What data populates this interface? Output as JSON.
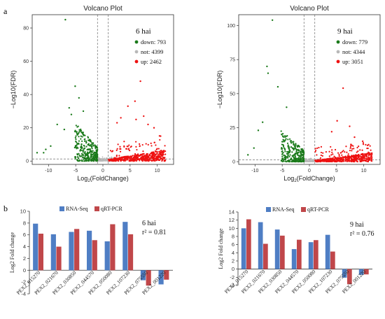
{
  "panel_labels": {
    "top": "a",
    "bottom": "b"
  },
  "chart_data": [
    {
      "type": "scatter",
      "title": "Volcano Plot",
      "annotation": "6 hai",
      "xlabel": "Log2(FoldChange)",
      "ylabel": "−Log10(FDR)",
      "xlim": [
        -13,
        13
      ],
      "ylim": [
        -2,
        88
      ],
      "x_ticks": [
        -10,
        -5,
        0,
        5,
        10
      ],
      "y_ticks": [
        0,
        20,
        40,
        60,
        80
      ],
      "threshold_x": [
        -1,
        1
      ],
      "threshold_y": 1.3,
      "legend": [
        {
          "label": "down: 793",
          "color": "#1a7a1a"
        },
        {
          "label": "not: 4399",
          "color": "#b8b8b8"
        },
        {
          "label": "up: 2462",
          "color": "#ee1111"
        }
      ],
      "outliers_down": [
        [
          -6.9,
          85
        ],
        [
          -5.1,
          45
        ],
        [
          -4.4,
          38
        ],
        [
          -6.2,
          32
        ],
        [
          -5.8,
          28
        ],
        [
          -3.6,
          30
        ],
        [
          -8.4,
          22
        ],
        [
          -7.1,
          19
        ],
        [
          -9.6,
          9
        ],
        [
          -10.5,
          7
        ],
        [
          -12.1,
          5
        ],
        [
          -10.9,
          5
        ]
      ],
      "outliers_up": [
        [
          6.9,
          48
        ],
        [
          5.9,
          36
        ],
        [
          4.6,
          33
        ],
        [
          7.5,
          27
        ],
        [
          6.1,
          25
        ],
        [
          3.3,
          26
        ],
        [
          8.3,
          22
        ],
        [
          9.4,
          20
        ],
        [
          10.6,
          15
        ],
        [
          2.6,
          23
        ]
      ]
    },
    {
      "type": "scatter",
      "title": "Volcano Plot",
      "annotation": "9 hai",
      "xlabel": "Log2(FoldChange)",
      "ylabel": "−Log10(FDR)",
      "xlim": [
        -13,
        13
      ],
      "ylim": [
        -2,
        108
      ],
      "x_ticks": [
        -10,
        -5,
        0,
        5,
        10
      ],
      "y_ticks": [
        0,
        25,
        50,
        75,
        100
      ],
      "threshold_x": [
        -1,
        1
      ],
      "threshold_y": 1.3,
      "legend": [
        {
          "label": "down: 779",
          "color": "#1a7a1a"
        },
        {
          "label": "not: 4344",
          "color": "#b8b8b8"
        },
        {
          "label": "up: 3051",
          "color": "#ee1111"
        }
      ],
      "outliers_down": [
        [
          -6.8,
          104
        ],
        [
          -7.8,
          70
        ],
        [
          -7.6,
          65
        ],
        [
          -5.8,
          55
        ],
        [
          -9.4,
          23
        ],
        [
          -10.2,
          10
        ],
        [
          -11.3,
          5
        ],
        [
          -8.6,
          29
        ],
        [
          -4.2,
          40
        ]
      ],
      "outliers_up": [
        [
          6.2,
          54
        ],
        [
          5.1,
          30
        ],
        [
          7.4,
          26
        ],
        [
          4.1,
          22
        ],
        [
          8.3,
          18
        ],
        [
          9.8,
          15
        ],
        [
          10.7,
          12
        ]
      ]
    },
    {
      "type": "bar",
      "annotation": "6 hai",
      "r2": "r² = 0.81",
      "ylabel": "Log2 Fold change",
      "ylim": [
        -4,
        10
      ],
      "y_ticks": [
        -4,
        -2,
        0,
        2,
        4,
        6,
        8,
        10
      ],
      "categories": [
        "PEX2_015270",
        "PEX2_021670",
        "PEX2_030850",
        "PEX2_044570",
        "PEX2_050080",
        "PEX2_107230",
        "PEX2_075550",
        "PEX2_001220"
      ],
      "series": [
        {
          "name": "RNA-Seq",
          "color": "#4f7ec4",
          "values": [
            7.9,
            6.1,
            6.5,
            6.7,
            4.9,
            8.2,
            -1.7,
            -2.4
          ]
        },
        {
          "name": "qRT-PCR",
          "color": "#c0474a",
          "values": [
            6.2,
            4.0,
            7.0,
            5.1,
            7.8,
            6.1,
            -2.6,
            -1.6
          ]
        }
      ]
    },
    {
      "type": "bar",
      "annotation": "9 hai",
      "r2": "r² = 0.76",
      "ylabel": "Log2 Fold change",
      "ylim": [
        -4,
        14
      ],
      "y_ticks": [
        -4,
        -2,
        0,
        2,
        4,
        6,
        8,
        10,
        12,
        14
      ],
      "categories": [
        "PEX2_015270",
        "PEX2_021670",
        "PEX2_030850",
        "PEX2_044570",
        "PEX2_050080",
        "PEX2_107230",
        "PEX2_075550",
        "PEX2_001220"
      ],
      "series": [
        {
          "name": "RNA-Seq",
          "color": "#4f7ec4",
          "values": [
            10.0,
            11.5,
            9.7,
            4.9,
            6.6,
            8.4,
            -2.1,
            -1.4
          ]
        },
        {
          "name": "qRT-PCR",
          "color": "#c0474a",
          "values": [
            12.2,
            6.2,
            8.2,
            7.2,
            7.1,
            4.3,
            -3.7,
            -1.3
          ]
        }
      ]
    }
  ]
}
